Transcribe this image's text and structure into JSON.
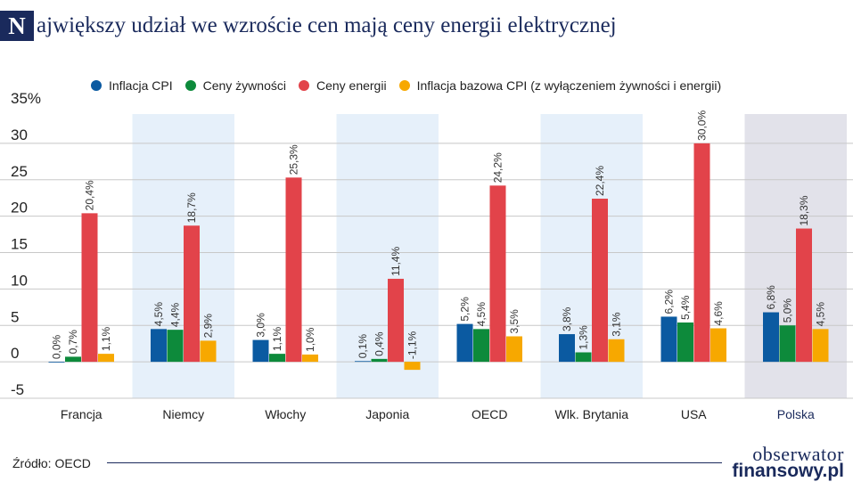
{
  "title": {
    "initial": "N",
    "rest": "ajwiększy udział we wzroście cen mają ceny energii elektrycznej"
  },
  "legend": [
    {
      "label": "Inflacja CPI",
      "color": "#0b5aa1"
    },
    {
      "label": "Ceny żywności",
      "color": "#0d8a3b"
    },
    {
      "label": "Ceny energii",
      "color": "#e2434a"
    },
    {
      "label": "Inflacja bazowa CPI (z wyłączeniem żywności i energii)",
      "color": "#f7a800"
    }
  ],
  "footer": {
    "source": "Źródło: OECD"
  },
  "brand": {
    "line1": "obserwator",
    "line2": "finansowy.pl"
  },
  "colors": {
    "band_light": "#e6f0fa",
    "band_highlight": "#e2e2ea",
    "grid": "#c8c8c8",
    "title_navy": "#1a2a5c"
  },
  "chart_data": {
    "type": "bar",
    "categories": [
      "Francja",
      "Niemcy",
      "Włochy",
      "Japonia",
      "OECD",
      "Wlk. Brytania",
      "USA",
      "Polska"
    ],
    "highlighted_category": "Polska",
    "shaded_categories": [
      "Niemcy",
      "Japonia",
      "Wlk. Brytania"
    ],
    "series": [
      {
        "name": "Inflacja CPI",
        "color": "#0b5aa1",
        "values": [
          0.0,
          4.5,
          3.0,
          0.1,
          5.2,
          3.8,
          6.2,
          6.8
        ],
        "labels": [
          "0,0%",
          "4,5%",
          "3,0%",
          "0,1%",
          "5,2%",
          "3,8%",
          "6,2%",
          "6,8%"
        ]
      },
      {
        "name": "Ceny żywności",
        "color": "#0d8a3b",
        "values": [
          0.7,
          4.4,
          1.1,
          0.4,
          4.5,
          1.3,
          5.4,
          5.0
        ],
        "labels": [
          "0,7%",
          "4,4%",
          "1,1%",
          "0,4%",
          "4,5%",
          "1,3%",
          "5,4%",
          "5,0%"
        ]
      },
      {
        "name": "Ceny energii",
        "color": "#e2434a",
        "values": [
          20.4,
          18.7,
          25.3,
          11.4,
          24.2,
          22.4,
          30.0,
          18.3
        ],
        "labels": [
          "20,4%",
          "18,7%",
          "25,3%",
          "11,4%",
          "24,2%",
          "22,4%",
          "30,0%",
          "18,3%"
        ]
      },
      {
        "name": "Inflacja bazowa CPI (z wyłączeniem żywności i energii)",
        "color": "#f7a800",
        "values": [
          1.1,
          2.9,
          1.0,
          -1.1,
          3.5,
          3.1,
          4.6,
          4.5
        ],
        "labels": [
          "1,1%",
          "2,9%",
          "1,0%",
          "-1,1%",
          "3,5%",
          "3,1%",
          "4,6%",
          "4,5%"
        ]
      }
    ],
    "yticks": [
      {
        "value": 35,
        "label": "35%"
      },
      {
        "value": 30,
        "label": "30"
      },
      {
        "value": 25,
        "label": "25"
      },
      {
        "value": 20,
        "label": "20"
      },
      {
        "value": 15,
        "label": "15"
      },
      {
        "value": 10,
        "label": "10"
      },
      {
        "value": 5,
        "label": "5"
      },
      {
        "value": 0,
        "label": "0"
      },
      {
        "value": -5,
        "label": "-5"
      }
    ],
    "ylim": [
      -5,
      35
    ],
    "grid": true
  }
}
